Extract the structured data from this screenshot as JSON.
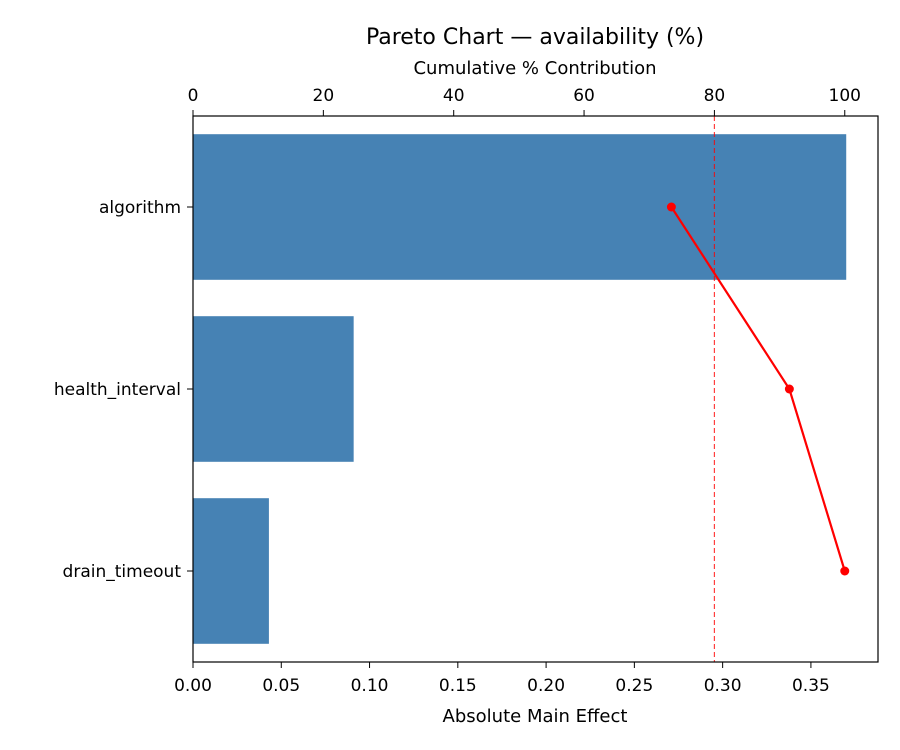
{
  "chart_data": {
    "type": "bar",
    "orientation": "horizontal",
    "title": "Pareto Chart — availability (%)",
    "xlabel": "Absolute Main Effect",
    "top_xlabel": "Cumulative % Contribution",
    "categories": [
      "algorithm",
      "health_interval",
      "drain_timeout"
    ],
    "values": [
      0.37,
      0.091,
      0.043
    ],
    "bar_color": "#4682b4",
    "xlim": [
      0,
      0.388
    ],
    "xticks": [
      0.0,
      0.05,
      0.1,
      0.15,
      0.2,
      0.25,
      0.3,
      0.35
    ],
    "xtick_labels": [
      "0.00",
      "0.05",
      "0.10",
      "0.15",
      "0.20",
      "0.25",
      "0.30",
      "0.35"
    ],
    "top_axis": {
      "lim": [
        0,
        105.1
      ],
      "ticks": [
        0,
        20,
        40,
        60,
        80,
        100
      ],
      "tick_labels": [
        "0",
        "20",
        "40",
        "60",
        "80",
        "100"
      ]
    },
    "cumulative": {
      "color": "#ff0000",
      "values": [
        73.4,
        91.5,
        100.0
      ]
    },
    "threshold": {
      "value": 80,
      "color": "#ff0000",
      "style": "dashed"
    }
  }
}
